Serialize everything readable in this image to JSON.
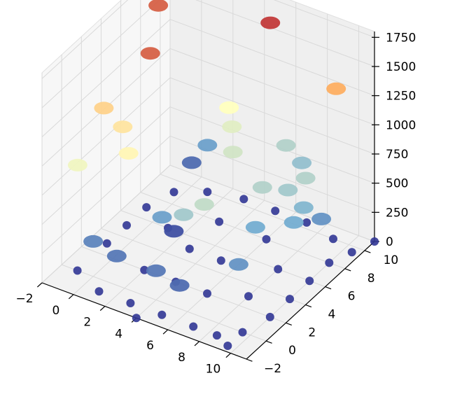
{
  "chart_data": {
    "type": "scatter",
    "projection": "3d",
    "title": "",
    "xlabel": "",
    "ylabel": "",
    "zlabel": "",
    "xlim": [
      -2,
      11
    ],
    "ylim": [
      -2,
      11
    ],
    "zlim": [
      0,
      1800
    ],
    "x_ticks": [
      -2,
      0,
      2,
      4,
      6,
      8,
      10
    ],
    "y_ticks": [
      -2,
      0,
      2,
      4,
      6,
      8,
      10
    ],
    "z_ticks": [
      0,
      250,
      500,
      750,
      1000,
      1250,
      1500,
      1750
    ],
    "x_tick_labels": [
      "−2",
      "0",
      "2",
      "4",
      "6",
      "8",
      "10"
    ],
    "y_tick_labels": [
      "−2",
      "0",
      "2",
      "4",
      "6",
      "8",
      "10"
    ],
    "z_tick_labels": [
      "0",
      "250",
      "500",
      "750",
      "1000",
      "1250",
      "1500",
      "1750"
    ],
    "grid": true,
    "colormap": "RdYlBu_r",
    "colors": {
      "low": "#313695",
      "mid_low": "#74add1",
      "mid": "#ffffbf",
      "mid_high": "#fdae61",
      "high": "#a50026"
    },
    "points": [
      {
        "x": -1.5,
        "y": 9,
        "z": 1550
      },
      {
        "x": -1.2,
        "y": 3,
        "z": 1150
      },
      {
        "x": -1.3,
        "y": 0.5,
        "z": 850
      },
      {
        "x": 0.5,
        "y": 5,
        "z": 1550
      },
      {
        "x": 1.5,
        "y": 10,
        "z": 1750
      },
      {
        "x": 5,
        "y": 10,
        "z": 1650
      },
      {
        "x": 9.5,
        "y": 9.5,
        "z": 1350
      },
      {
        "x": 7,
        "y": 6,
        "z": 650
      },
      {
        "x": 4.5,
        "y": 2,
        "z": 600
      },
      {
        "x": 5.5,
        "y": 2.5,
        "z": 700
      },
      {
        "x": 0,
        "y": 3,
        "z": 1050
      },
      {
        "x": 1,
        "y": 2,
        "z": 950
      },
      {
        "x": 3,
        "y": 9,
        "z": 900
      },
      {
        "x": 3.5,
        "y": 8.5,
        "z": 800
      },
      {
        "x": 4.5,
        "y": 7,
        "z": 750
      },
      {
        "x": 8.5,
        "y": 8,
        "z": 650
      },
      {
        "x": 8,
        "y": 7,
        "z": 600
      },
      {
        "x": 9,
        "y": 7,
        "z": 500
      },
      {
        "x": 7.5,
        "y": 4.5,
        "z": 450
      },
      {
        "x": 2.5,
        "y": 3,
        "z": 400
      },
      {
        "x": 0,
        "y": 0,
        "z": 300
      },
      {
        "x": 1.5,
        "y": 0,
        "z": 250
      },
      {
        "x": 4,
        "y": 0,
        "z": 250
      },
      {
        "x": 5.5,
        "y": 0,
        "z": 200
      },
      {
        "x": 8,
        "y": 2,
        "z": 350
      },
      {
        "x": 9,
        "y": 6,
        "z": 450
      },
      {
        "x": 9.5,
        "y": 8,
        "z": 350
      },
      {
        "x": 6,
        "y": 10,
        "z": 650
      },
      {
        "x": 7,
        "y": 10,
        "z": 550
      },
      {
        "x": 1,
        "y": 10,
        "z": 400
      },
      {
        "x": 0,
        "y": 10,
        "z": 200
      },
      {
        "x": 2,
        "y": 5,
        "z": 100
      },
      {
        "x": -1,
        "y": 0,
        "z": 0
      },
      {
        "x": 1,
        "y": -1,
        "z": 0
      },
      {
        "x": 3,
        "y": -1,
        "z": 0
      },
      {
        "x": 5,
        "y": -1,
        "z": 0
      },
      {
        "x": 7,
        "y": -1,
        "z": 0
      },
      {
        "x": 8.5,
        "y": -1,
        "z": 0
      },
      {
        "x": 9.5,
        "y": 0,
        "z": 0
      },
      {
        "x": 10,
        "y": 2,
        "z": 0
      },
      {
        "x": 10,
        "y": 4,
        "z": 0
      },
      {
        "x": 10,
        "y": 6,
        "z": 0
      },
      {
        "x": 10,
        "y": 8,
        "z": 0
      },
      {
        "x": 9,
        "y": 10,
        "z": 0
      },
      {
        "x": 7,
        "y": 10.5,
        "z": 0
      },
      {
        "x": 5,
        "y": 10.5,
        "z": 0
      },
      {
        "x": 3,
        "y": 10.5,
        "z": 0
      },
      {
        "x": 1,
        "y": 10,
        "z": 0
      },
      {
        "x": -0.5,
        "y": 9,
        "z": 0
      },
      {
        "x": -1,
        "y": 7,
        "z": 0
      },
      {
        "x": -1,
        "y": 5,
        "z": 0
      },
      {
        "x": -1,
        "y": 3,
        "z": 0
      },
      {
        "x": 2,
        "y": 2,
        "z": 0
      },
      {
        "x": 4,
        "y": 2,
        "z": 0
      },
      {
        "x": 6,
        "y": 2,
        "z": 0
      },
      {
        "x": 8,
        "y": 3,
        "z": 0
      },
      {
        "x": 8,
        "y": 6,
        "z": 0
      },
      {
        "x": 6,
        "y": 8,
        "z": 0
      },
      {
        "x": 3,
        "y": 8,
        "z": 0
      },
      {
        "x": 1,
        "y": 6,
        "z": 0
      },
      {
        "x": 3,
        "y": 5,
        "z": 0
      },
      {
        "x": 5,
        "y": 5,
        "z": 0
      },
      {
        "x": 9.5,
        "y": -1.5,
        "z": 0
      },
      {
        "x": 11,
        "y": 11,
        "z": 0
      },
      {
        "x": 4,
        "y": -2,
        "z": 0
      },
      {
        "x": 10.5,
        "y": 9.5,
        "z": 0
      }
    ]
  }
}
